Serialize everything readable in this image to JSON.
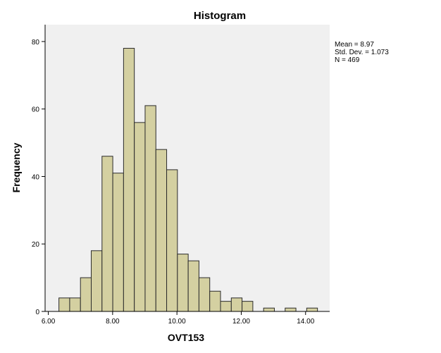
{
  "chart_data": {
    "type": "bar",
    "title": "Histogram",
    "xlabel": "OVT153",
    "ylabel": "Frequency",
    "xlim": [
      5.9,
      14.75
    ],
    "ylim": [
      0,
      85
    ],
    "x_ticks": [
      6,
      8,
      10,
      12,
      14
    ],
    "x_tick_labels": [
      "6.00",
      "8.00",
      "10.00",
      "12.00",
      "14.00"
    ],
    "y_ticks": [
      0,
      20,
      40,
      60,
      80
    ],
    "y_tick_labels": [
      "0",
      "20",
      "40",
      "60",
      "80"
    ],
    "bin_edges": [
      6.33,
      6.665,
      7.0,
      7.335,
      7.67,
      8.005,
      8.34,
      8.675,
      9.01,
      9.345,
      9.68,
      10.015,
      10.35,
      10.685,
      11.02,
      11.355,
      11.69,
      12.025,
      12.36,
      12.695,
      13.03,
      13.365,
      13.7,
      14.035,
      14.37
    ],
    "values": [
      4,
      4,
      10,
      18,
      46,
      41,
      78,
      56,
      61,
      48,
      42,
      17,
      15,
      10,
      6,
      3,
      4,
      3,
      0,
      1,
      0,
      1,
      0,
      1
    ],
    "grid": false,
    "legend": "none",
    "stats": [
      "Mean = 8.97",
      "Std. Dev. = 1.073",
      "N = 469"
    ],
    "colors": {
      "bar_fill": "#d4d0a1",
      "bar_stroke": "#2b2b2b",
      "plot_background": "#f0f0f0",
      "axis": "#000000"
    }
  }
}
